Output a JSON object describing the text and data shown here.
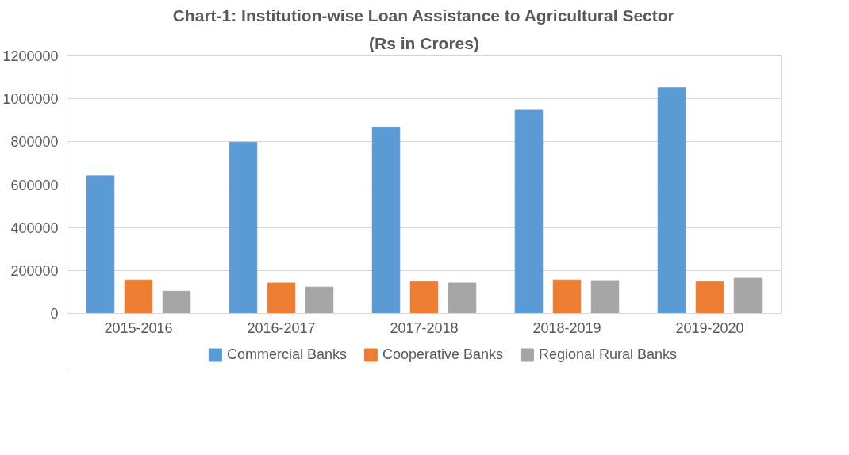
{
  "chart_data": {
    "type": "bar",
    "title": "Chart-1: Institution-wise Loan Assistance to Agricultural Sector",
    "subtitle": "(Rs in Crores)",
    "categories": [
      "2015-2016",
      "2016-2017",
      "2017-2018",
      "2018-2019",
      "2019-2020"
    ],
    "series": [
      {
        "name": "Commercial Banks",
        "color": "#5b9bd5",
        "values": [
          641000,
          798000,
          868000,
          947000,
          1051000
        ]
      },
      {
        "name": "Cooperative Banks",
        "color": "#ed7d31",
        "values": [
          156000,
          142000,
          149000,
          156000,
          149000
        ]
      },
      {
        "name": "Regional Rural Banks",
        "color": "#a5a5a5",
        "values": [
          104000,
          123000,
          142000,
          153000,
          164000
        ]
      }
    ],
    "ylim": [
      0,
      1200000
    ],
    "yticks": [
      0,
      200000,
      400000,
      600000,
      800000,
      1000000,
      1200000
    ],
    "grid": "y",
    "legend": "bottom"
  }
}
